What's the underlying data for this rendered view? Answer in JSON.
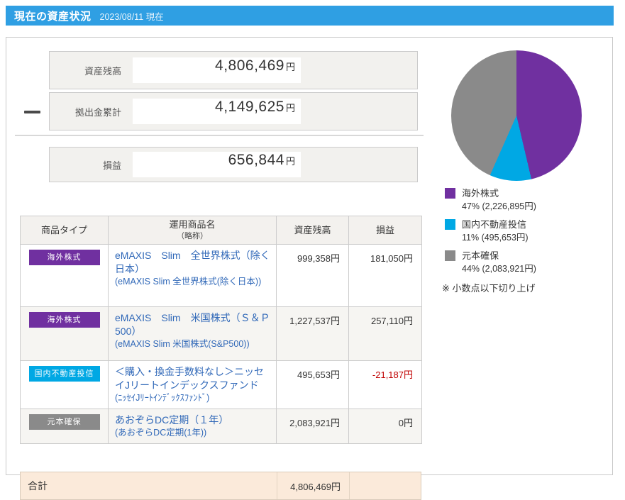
{
  "header": {
    "title": "現在の資産状況",
    "date_label": "2023/08/11 現在"
  },
  "summary": {
    "rows": [
      {
        "label": "資産残高",
        "value": "4,806,469",
        "unit": "円"
      },
      {
        "label": "拠出金累計",
        "value": "4,149,625",
        "unit": "円"
      }
    ],
    "result": {
      "label": "損益",
      "value": "656,844",
      "unit": "円"
    }
  },
  "chart_data": {
    "type": "pie",
    "start_angle_deg": 0,
    "direction": "clockwise",
    "slices": [
      {
        "label": "海外株式",
        "value_yen": 2226895,
        "percent_label": "47%",
        "display": "47% (2,226,895円)",
        "color": "#7030a0"
      },
      {
        "label": "国内不動産投信",
        "value_yen": 495653,
        "percent_label": "11%",
        "display": "11% (495,653円)",
        "color": "#00a8e4"
      },
      {
        "label": "元本確保",
        "value_yen": 2083921,
        "percent_label": "44%",
        "display": "44% (2,083,921円)",
        "color": "#8a8a8a"
      }
    ],
    "note": "※ 小数点以下切り上げ"
  },
  "table": {
    "columns": {
      "type": "商品タイプ",
      "name": "運用商品名",
      "name_sub": "（略称）",
      "asset": "資産残高",
      "pl": "損益"
    },
    "rows": [
      {
        "type": {
          "label": "海外株式",
          "color": "#7030a0"
        },
        "name": "eMAXIS　Slim　全世界株式（除く日本）",
        "alias": "(eMAXIS Slim 全世界株式(除く日本))",
        "asset": "999,358円",
        "pl": "181,050円",
        "pl_negative": false
      },
      {
        "type": {
          "label": "海外株式",
          "color": "#7030a0"
        },
        "name": "eMAXIS　Slim　米国株式（Ｓ＆Ｐ500）",
        "alias": "(eMAXIS Slim 米国株式(S&P500))",
        "asset": "1,227,537円",
        "pl": "257,110円",
        "pl_negative": false
      },
      {
        "type": {
          "label": "国内不動産投信",
          "color": "#00a8e4"
        },
        "name": "＜購入・換金手数料なし＞ニッセイJリートインデックスファンド",
        "alias": "(ﾆｯｾｲJﾘｰﾄｲﾝﾃﾞｯｸｽﾌｧﾝﾄﾞ)",
        "asset": "495,653円",
        "pl": "-21,187円",
        "pl_negative": true
      },
      {
        "type": {
          "label": "元本確保",
          "color": "#8a8a8a"
        },
        "name": "あおぞらDC定期（１年）",
        "alias": "(あおぞらDC定期(1年))",
        "asset": "2,083,921円",
        "pl": "0円",
        "pl_negative": false
      }
    ],
    "total": {
      "label": "合計",
      "asset": "4,806,469円",
      "pl": ""
    }
  }
}
